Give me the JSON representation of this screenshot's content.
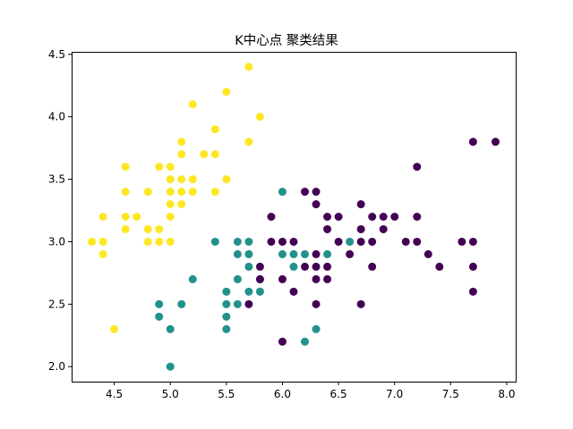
{
  "chart_data": {
    "type": "scatter",
    "title": "K中心点 聚类结果",
    "xlabel": "",
    "ylabel": "",
    "xlim": [
      4.12,
      8.08
    ],
    "ylim": [
      1.88,
      4.52
    ],
    "xticks": [
      4.5,
      5.0,
      5.5,
      6.0,
      6.5,
      7.0,
      7.5,
      8.0
    ],
    "xtick_labels": [
      "4.5",
      "5.0",
      "5.5",
      "6.0",
      "6.5",
      "7.0",
      "7.5",
      "8.0"
    ],
    "yticks": [
      2.0,
      2.5,
      3.0,
      3.5,
      4.0,
      4.5
    ],
    "ytick_labels": [
      "2.0",
      "2.5",
      "3.0",
      "3.5",
      "4.0",
      "4.5"
    ],
    "grid": false,
    "series": [
      {
        "color": "#fde725",
        "points": [
          [
            4.3,
            3.0
          ],
          [
            4.4,
            2.9
          ],
          [
            4.4,
            3.0
          ],
          [
            4.4,
            3.2
          ],
          [
            4.5,
            2.3
          ],
          [
            4.6,
            3.1
          ],
          [
            4.6,
            3.2
          ],
          [
            4.6,
            3.4
          ],
          [
            4.6,
            3.6
          ],
          [
            4.7,
            3.2
          ],
          [
            4.8,
            3.0
          ],
          [
            4.8,
            3.1
          ],
          [
            4.8,
            3.4
          ],
          [
            4.9,
            3.0
          ],
          [
            4.9,
            3.1
          ],
          [
            4.9,
            3.6
          ],
          [
            5.0,
            3.0
          ],
          [
            5.0,
            3.2
          ],
          [
            5.0,
            3.3
          ],
          [
            5.0,
            3.4
          ],
          [
            5.0,
            3.5
          ],
          [
            5.0,
            3.6
          ],
          [
            5.1,
            3.3
          ],
          [
            5.1,
            3.4
          ],
          [
            5.1,
            3.5
          ],
          [
            5.1,
            3.7
          ],
          [
            5.1,
            3.8
          ],
          [
            5.2,
            3.4
          ],
          [
            5.2,
            3.5
          ],
          [
            5.2,
            4.1
          ],
          [
            5.3,
            3.7
          ],
          [
            5.4,
            3.4
          ],
          [
            5.4,
            3.7
          ],
          [
            5.4,
            3.9
          ],
          [
            5.5,
            3.5
          ],
          [
            5.5,
            4.2
          ],
          [
            5.7,
            3.8
          ],
          [
            5.7,
            4.4
          ],
          [
            5.8,
            4.0
          ]
        ]
      },
      {
        "color": "#21918c",
        "points": [
          [
            4.9,
            2.4
          ],
          [
            4.9,
            2.5
          ],
          [
            5.0,
            2.0
          ],
          [
            5.0,
            2.3
          ],
          [
            5.1,
            2.5
          ],
          [
            5.2,
            2.7
          ],
          [
            5.4,
            3.0
          ],
          [
            5.5,
            2.3
          ],
          [
            5.5,
            2.4
          ],
          [
            5.5,
            2.5
          ],
          [
            5.5,
            2.6
          ],
          [
            5.6,
            2.5
          ],
          [
            5.6,
            2.7
          ],
          [
            5.6,
            2.9
          ],
          [
            5.6,
            3.0
          ],
          [
            5.7,
            2.6
          ],
          [
            5.7,
            2.8
          ],
          [
            5.7,
            2.9
          ],
          [
            5.7,
            3.0
          ],
          [
            5.8,
            2.6
          ],
          [
            5.8,
            2.7
          ],
          [
            6.0,
            2.9
          ],
          [
            6.0,
            3.4
          ],
          [
            6.1,
            2.8
          ],
          [
            6.1,
            2.9
          ],
          [
            6.2,
            2.2
          ],
          [
            6.2,
            2.9
          ],
          [
            6.3,
            2.3
          ],
          [
            6.4,
            2.9
          ],
          [
            6.6,
            3.0
          ]
        ]
      },
      {
        "color": "#440154",
        "points": [
          [
            5.7,
            2.5
          ],
          [
            5.8,
            2.7
          ],
          [
            5.8,
            2.8
          ],
          [
            5.9,
            3.0
          ],
          [
            5.9,
            3.2
          ],
          [
            6.0,
            2.2
          ],
          [
            6.0,
            2.7
          ],
          [
            6.0,
            3.0
          ],
          [
            6.1,
            2.6
          ],
          [
            6.1,
            3.0
          ],
          [
            6.2,
            2.8
          ],
          [
            6.2,
            3.4
          ],
          [
            6.3,
            2.5
          ],
          [
            6.3,
            2.7
          ],
          [
            6.3,
            2.8
          ],
          [
            6.3,
            2.9
          ],
          [
            6.3,
            3.3
          ],
          [
            6.3,
            3.4
          ],
          [
            6.4,
            2.7
          ],
          [
            6.4,
            2.8
          ],
          [
            6.4,
            3.1
          ],
          [
            6.4,
            3.2
          ],
          [
            6.5,
            3.0
          ],
          [
            6.5,
            3.2
          ],
          [
            6.6,
            2.9
          ],
          [
            6.7,
            2.5
          ],
          [
            6.7,
            3.0
          ],
          [
            6.7,
            3.1
          ],
          [
            6.7,
            3.3
          ],
          [
            6.8,
            2.8
          ],
          [
            6.8,
            3.0
          ],
          [
            6.8,
            3.2
          ],
          [
            6.9,
            3.1
          ],
          [
            6.9,
            3.2
          ],
          [
            7.0,
            3.2
          ],
          [
            7.1,
            3.0
          ],
          [
            7.2,
            3.0
          ],
          [
            7.2,
            3.2
          ],
          [
            7.2,
            3.6
          ],
          [
            7.3,
            2.9
          ],
          [
            7.4,
            2.8
          ],
          [
            7.6,
            3.0
          ],
          [
            7.7,
            2.6
          ],
          [
            7.7,
            2.8
          ],
          [
            7.7,
            3.0
          ],
          [
            7.7,
            3.8
          ],
          [
            7.9,
            3.8
          ]
        ]
      }
    ]
  }
}
